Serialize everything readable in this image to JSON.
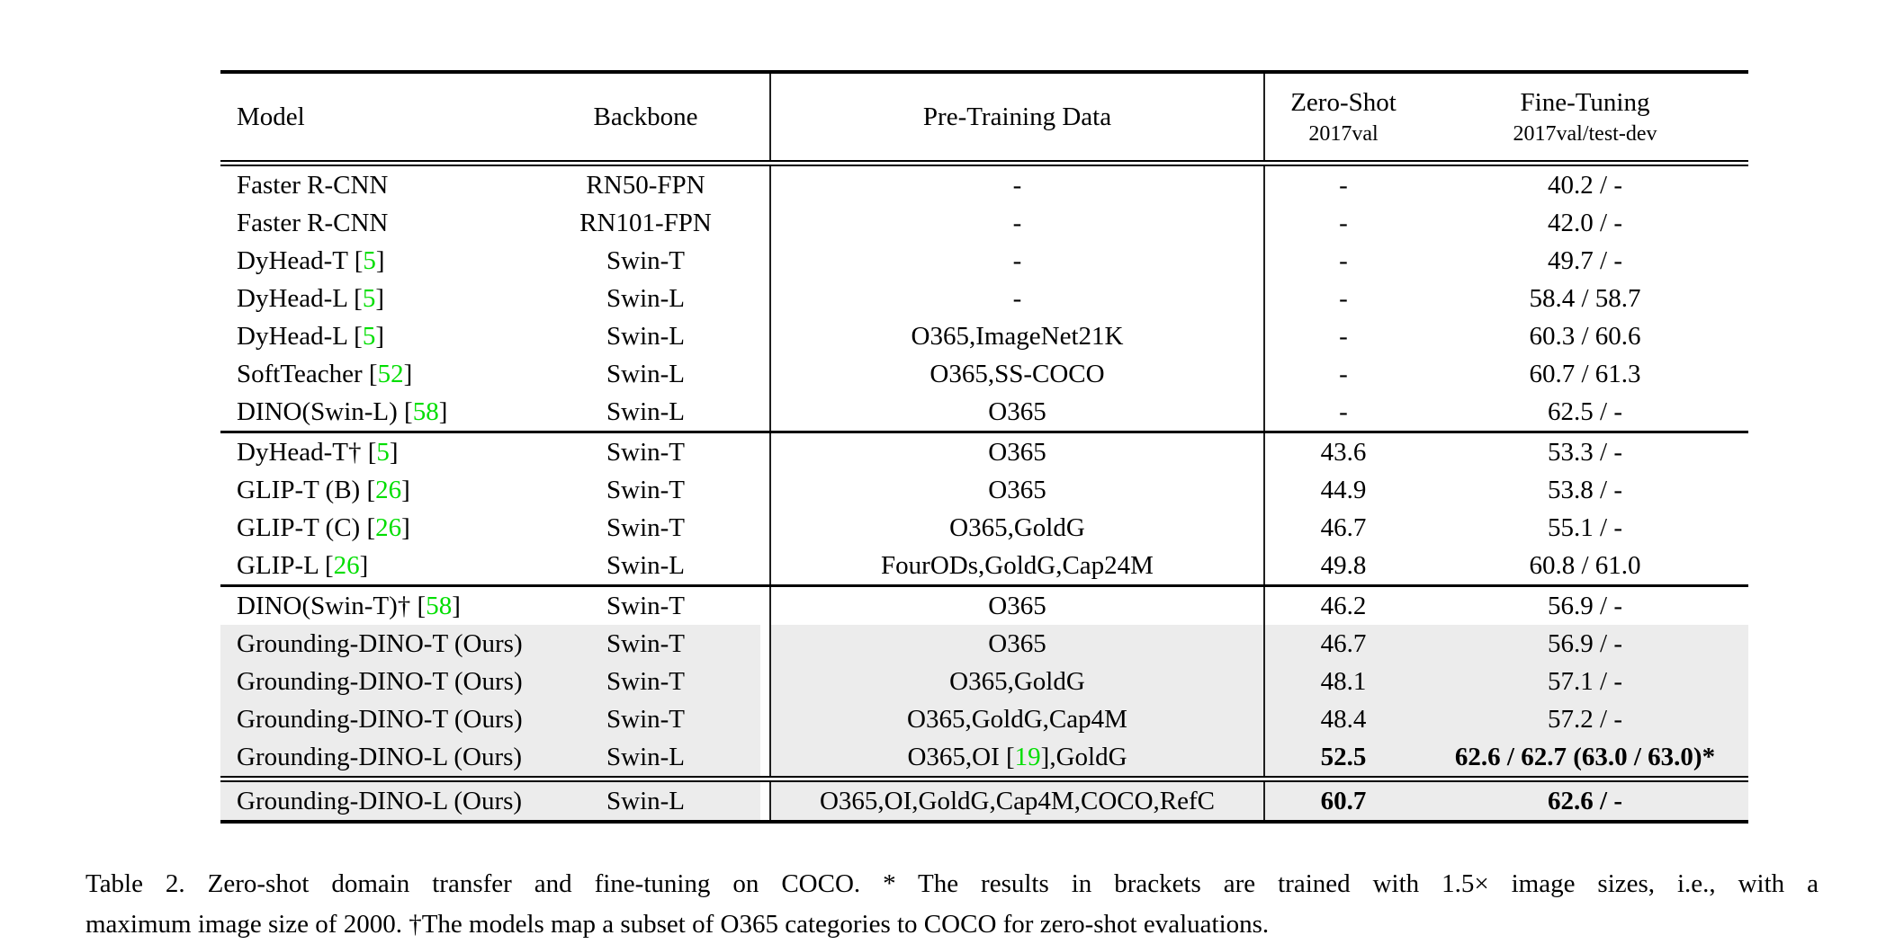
{
  "colors": {
    "cite_green": "#00DE00",
    "row_highlight": "#ECECEC",
    "text": "#000000",
    "rule": "#000000"
  },
  "table": {
    "header": {
      "model": "Model",
      "backbone": "Backbone",
      "pretrain": "Pre-Training Data",
      "zeroshot_title": "Zero-Shot",
      "zeroshot_sub": "2017val",
      "finetune_title": "Fine-Tuning",
      "finetune_sub": "2017val/test-dev"
    },
    "groups": [
      {
        "rows": [
          {
            "model_parts": [
              {
                "t": "Faster R-CNN"
              }
            ],
            "backbone": "RN50-FPN",
            "pretrain_parts": [
              {
                "t": "-"
              }
            ],
            "zero_shot": "-",
            "fine_tuning": "40.2 / -",
            "highlight": false,
            "bold": false
          },
          {
            "model_parts": [
              {
                "t": "Faster R-CNN"
              }
            ],
            "backbone": "RN101-FPN",
            "pretrain_parts": [
              {
                "t": "-"
              }
            ],
            "zero_shot": "-",
            "fine_tuning": "42.0 / -",
            "highlight": false,
            "bold": false
          },
          {
            "model_parts": [
              {
                "t": "DyHead-T ["
              },
              {
                "t": "5",
                "g": true
              },
              {
                "t": "]"
              }
            ],
            "backbone": "Swin-T",
            "pretrain_parts": [
              {
                "t": "-"
              }
            ],
            "zero_shot": "-",
            "fine_tuning": "49.7 / -",
            "highlight": false,
            "bold": false
          },
          {
            "model_parts": [
              {
                "t": "DyHead-L ["
              },
              {
                "t": "5",
                "g": true
              },
              {
                "t": "]"
              }
            ],
            "backbone": "Swin-L",
            "pretrain_parts": [
              {
                "t": "-"
              }
            ],
            "zero_shot": "-",
            "fine_tuning": "58.4 / 58.7",
            "highlight": false,
            "bold": false
          },
          {
            "model_parts": [
              {
                "t": "DyHead-L ["
              },
              {
                "t": "5",
                "g": true
              },
              {
                "t": "]"
              }
            ],
            "backbone": "Swin-L",
            "pretrain_parts": [
              {
                "t": "O365,ImageNet21K"
              }
            ],
            "zero_shot": "-",
            "fine_tuning": "60.3 / 60.6",
            "highlight": false,
            "bold": false
          },
          {
            "model_parts": [
              {
                "t": "SoftTeacher ["
              },
              {
                "t": "52",
                "g": true
              },
              {
                "t": "]"
              }
            ],
            "backbone": "Swin-L",
            "pretrain_parts": [
              {
                "t": "O365,SS-COCO"
              }
            ],
            "zero_shot": "-",
            "fine_tuning": "60.7 / 61.3",
            "highlight": false,
            "bold": false
          },
          {
            "model_parts": [
              {
                "t": "DINO(Swin-L) ["
              },
              {
                "t": "58",
                "g": true
              },
              {
                "t": "]"
              }
            ],
            "backbone": "Swin-L",
            "pretrain_parts": [
              {
                "t": "O365"
              }
            ],
            "zero_shot": "-",
            "fine_tuning": "62.5 / -",
            "highlight": false,
            "bold": false
          }
        ]
      },
      {
        "rows": [
          {
            "model_parts": [
              {
                "t": "DyHead-T† ["
              },
              {
                "t": "5",
                "g": true
              },
              {
                "t": "]"
              }
            ],
            "backbone": "Swin-T",
            "pretrain_parts": [
              {
                "t": "O365"
              }
            ],
            "zero_shot": "43.6",
            "fine_tuning": "53.3 / -",
            "highlight": false,
            "bold": false
          },
          {
            "model_parts": [
              {
                "t": "GLIP-T (B) ["
              },
              {
                "t": "26",
                "g": true
              },
              {
                "t": "]"
              }
            ],
            "backbone": "Swin-T",
            "pretrain_parts": [
              {
                "t": "O365"
              }
            ],
            "zero_shot": "44.9",
            "fine_tuning": "53.8 / -",
            "highlight": false,
            "bold": false
          },
          {
            "model_parts": [
              {
                "t": "GLIP-T (C) ["
              },
              {
                "t": "26",
                "g": true
              },
              {
                "t": "]"
              }
            ],
            "backbone": "Swin-T",
            "pretrain_parts": [
              {
                "t": "O365,GoldG"
              }
            ],
            "zero_shot": "46.7",
            "fine_tuning": "55.1 / -",
            "highlight": false,
            "bold": false
          },
          {
            "model_parts": [
              {
                "t": "GLIP-L ["
              },
              {
                "t": "26",
                "g": true
              },
              {
                "t": "]"
              }
            ],
            "backbone": "Swin-L",
            "pretrain_parts": [
              {
                "t": "FourODs,GoldG,Cap24M"
              }
            ],
            "zero_shot": "49.8",
            "fine_tuning": "60.8 / 61.0",
            "highlight": false,
            "bold": false
          }
        ]
      },
      {
        "rows": [
          {
            "model_parts": [
              {
                "t": "DINO(Swin-T)† ["
              },
              {
                "t": "58",
                "g": true
              },
              {
                "t": "]"
              }
            ],
            "backbone": "Swin-T",
            "pretrain_parts": [
              {
                "t": "O365"
              }
            ],
            "zero_shot": "46.2",
            "fine_tuning": "56.9 / -",
            "highlight": false,
            "bold": false
          },
          {
            "model_parts": [
              {
                "t": "Grounding-DINO-T (Ours)"
              }
            ],
            "backbone": "Swin-T",
            "pretrain_parts": [
              {
                "t": "O365"
              }
            ],
            "zero_shot": "46.7",
            "fine_tuning": "56.9 / -",
            "highlight": true,
            "bold": false
          },
          {
            "model_parts": [
              {
                "t": "Grounding-DINO-T (Ours)"
              }
            ],
            "backbone": "Swin-T",
            "pretrain_parts": [
              {
                "t": "O365,GoldG"
              }
            ],
            "zero_shot": "48.1",
            "fine_tuning": "57.1 / -",
            "highlight": true,
            "bold": false
          },
          {
            "model_parts": [
              {
                "t": "Grounding-DINO-T (Ours)"
              }
            ],
            "backbone": "Swin-T",
            "pretrain_parts": [
              {
                "t": "O365,GoldG,Cap4M"
              }
            ],
            "zero_shot": "48.4",
            "fine_tuning": "57.2 / -",
            "highlight": true,
            "bold": false
          },
          {
            "model_parts": [
              {
                "t": "Grounding-DINO-L (Ours)"
              }
            ],
            "backbone": "Swin-L",
            "pretrain_parts": [
              {
                "t": "O365,OI ["
              },
              {
                "t": "19",
                "g": true
              },
              {
                "t": "],GoldG"
              }
            ],
            "zero_shot": "52.5",
            "fine_tuning": "62.6 / 62.7 (63.0 / 63.0)*",
            "highlight": true,
            "bold": true
          }
        ]
      },
      {
        "rows": [
          {
            "model_parts": [
              {
                "t": "Grounding-DINO-L (Ours)"
              }
            ],
            "backbone": "Swin-L",
            "pretrain_parts": [
              {
                "t": "O365,OI,GoldG,Cap4M,COCO,RefC"
              }
            ],
            "zero_shot": "60.7",
            "fine_tuning": "62.6 / -",
            "highlight": true,
            "bold": true
          }
        ]
      }
    ]
  },
  "caption": {
    "line1": "Table 2.  Zero-shot domain transfer and fine-tuning on COCO. * The results in brackets are trained with 1.5× image sizes, i.e., with a",
    "line2": "maximum image size of 2000. †The models map a subset of O365 categories to COCO for zero-shot evaluations."
  }
}
